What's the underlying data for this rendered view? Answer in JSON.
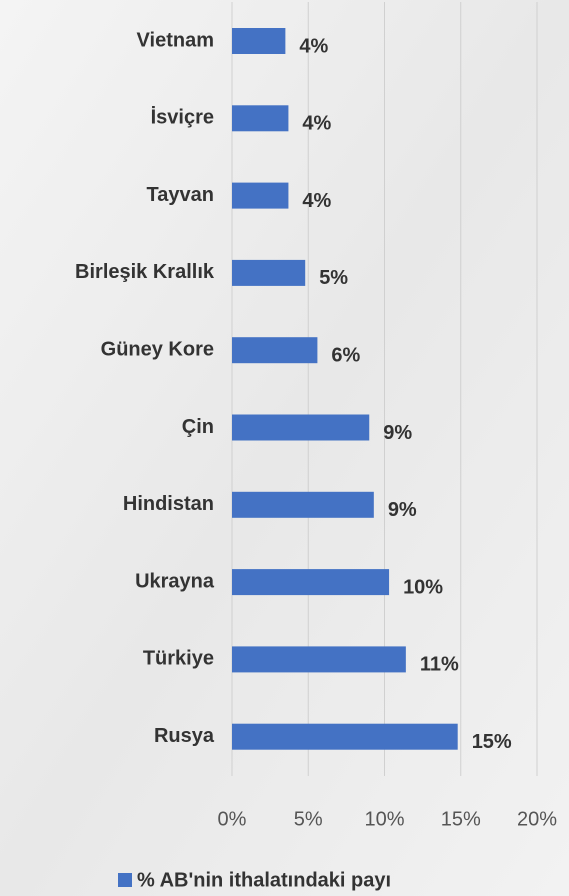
{
  "chart_data": {
    "type": "barh",
    "categories": [
      "Vietnam",
      "İsviçre",
      "Tayvan",
      "Birleşik Krallık",
      "Güney Kore",
      "Çin",
      "Hindistan",
      "Ukrayna",
      "Türkiye",
      "Rusya"
    ],
    "series": [
      {
        "name": "% AB'nin ithalatındaki payı",
        "color": "#4472c4",
        "values": [
          3.5,
          3.7,
          3.7,
          4.8,
          5.6,
          9.0,
          9.3,
          10.3,
          11.4,
          14.8
        ],
        "value_labels": [
          "4%",
          "4%",
          "4%",
          "5%",
          "6%",
          "9%",
          "9%",
          "10%",
          "11%",
          "15%"
        ]
      }
    ],
    "xlim": [
      0,
      20
    ],
    "xticks": [
      {
        "value": 0,
        "label": "0%"
      },
      {
        "value": 5,
        "label": "5%"
      },
      {
        "value": 10,
        "label": "10%"
      },
      {
        "value": 15,
        "label": "15%"
      },
      {
        "value": 20,
        "label": "20%"
      }
    ],
    "grid": true,
    "legend": "bottom"
  }
}
